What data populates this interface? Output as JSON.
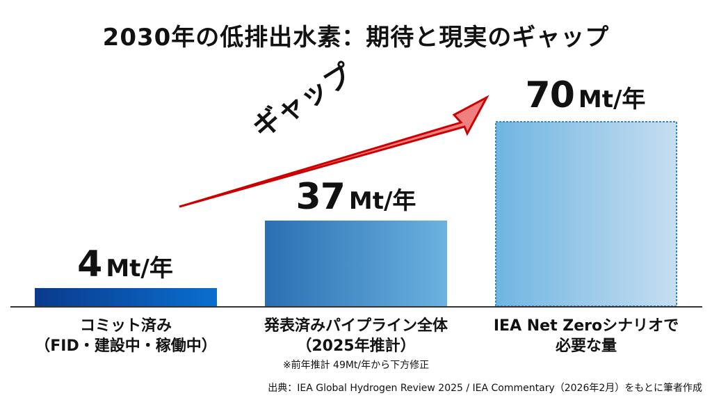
{
  "chart_data": {
    "type": "bar",
    "title": "2030年の低排出水素：期待と現実のギャップ",
    "categories": [
      [
        "コミット済み",
        "（FID・建設中・稼働中）"
      ],
      [
        "発表済みパイプライン全体",
        "（2025年推計）"
      ],
      [
        "IEA Net Zeroシナリオで",
        "必要な量"
      ]
    ],
    "values": [
      4,
      37,
      70
    ],
    "unit": "Mt/年",
    "value_labels": [
      "4",
      "37",
      "70"
    ],
    "note": "※前年推計 49Mt/年から下方修正",
    "annotation": "ギャップ",
    "source": "出典：IEA Global Hydrogen Review 2025 / IEA Commentary（2026年2月）をもとに筆者作成",
    "colors": {
      "bar1": [
        "#0a3a8c",
        "#0a6fcf"
      ],
      "bar2": [
        "#2a6fb2",
        "#6bb2e0"
      ],
      "bar3": [
        "#6fb5e2",
        "#c6def0"
      ],
      "bar3_border": "#3b87c4",
      "arrow_fill": "#f08080",
      "arrow_stroke": "#cc0000"
    },
    "grid": false,
    "legend": "none"
  }
}
